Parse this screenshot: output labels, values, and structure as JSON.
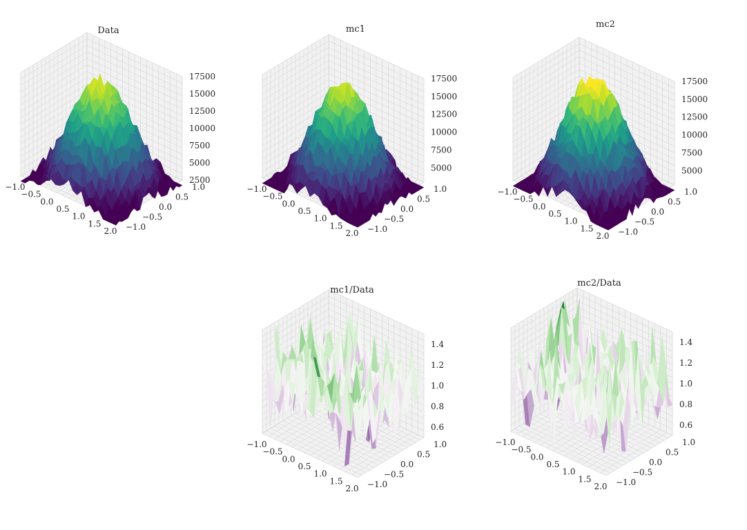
{
  "colors": {
    "background": "#ffffff",
    "pane": "#f2f2f2",
    "grid": "#cfcfcf",
    "text": "#222222"
  },
  "chart_data": [
    {
      "type": "surface",
      "title": "Data",
      "colormap": "viridis",
      "xlim": [
        -1.0,
        2.0
      ],
      "ylim": [
        -1.0,
        1.0
      ],
      "zlim": [
        2500,
        17500
      ],
      "x_ticks": [
        "−1.0",
        "−0.5",
        "0.0",
        "0.5",
        "1.0",
        "1.5",
        "2.0"
      ],
      "y_ticks": [
        "−1.0",
        "−0.5",
        "0.0",
        "0.5",
        "1.0"
      ],
      "z_ticks": [
        "2500",
        "5000",
        "7500",
        "10000",
        "12500",
        "15000",
        "17500"
      ],
      "peak": 16500,
      "grid": true
    },
    {
      "type": "surface",
      "title": "mc1",
      "colormap": "viridis",
      "xlim": [
        -1.0,
        2.0
      ],
      "ylim": [
        -1.0,
        1.0
      ],
      "zlim": [
        3000,
        17500
      ],
      "x_ticks": [
        "−1.0",
        "−0.5",
        "0.0",
        "0.5",
        "1.0",
        "1.5",
        "2.0"
      ],
      "y_ticks": [
        "−1.0",
        "−0.5",
        "0.0",
        "0.5",
        "1.0"
      ],
      "z_ticks": [
        "5000",
        "7500",
        "10000",
        "12500",
        "15000",
        "17500"
      ],
      "peak": 16000,
      "grid": true
    },
    {
      "type": "surface",
      "title": "mc2",
      "colormap": "viridis",
      "xlim": [
        -1.0,
        2.0
      ],
      "ylim": [
        -1.0,
        1.0
      ],
      "zlim": [
        3000,
        17500
      ],
      "x_ticks": [
        "−1.0",
        "−0.5",
        "0.0",
        "0.5",
        "1.0",
        "1.5",
        "2.0"
      ],
      "y_ticks": [
        "−1.0",
        "−0.5",
        "0.0",
        "0.5",
        "1.0"
      ],
      "z_ticks": [
        "5000",
        "7500",
        "10000",
        "12500",
        "15000",
        "17500"
      ],
      "peak": 17500,
      "grid": true
    },
    {
      "type": "surface",
      "title": "mc1/Data",
      "colormap": "PRGn",
      "xlim": [
        -1.0,
        2.0
      ],
      "ylim": [
        -1.0,
        1.0
      ],
      "zlim": [
        0.5,
        1.5
      ],
      "x_ticks": [
        "−1.0",
        "−0.5",
        "0.0",
        "0.5",
        "1.0",
        "1.5",
        "2.0"
      ],
      "y_ticks": [
        "−1.0",
        "−0.5",
        "0.0",
        "0.5",
        "1.0"
      ],
      "z_ticks": [
        "0.6",
        "0.8",
        "1.0",
        "1.2",
        "1.4"
      ],
      "peak": 1.45,
      "grid": true
    },
    {
      "type": "surface",
      "title": "mc2/Data",
      "colormap": "PRGn",
      "xlim": [
        -1.0,
        2.0
      ],
      "ylim": [
        -1.0,
        1.0
      ],
      "zlim": [
        0.5,
        1.5
      ],
      "x_ticks": [
        "−1.0",
        "−0.5",
        "0.0",
        "0.5",
        "1.0",
        "1.5",
        "2.0"
      ],
      "y_ticks": [
        "−1.0",
        "−0.5",
        "0.0",
        "0.5",
        "1.0"
      ],
      "z_ticks": [
        "0.6",
        "0.8",
        "1.0",
        "1.2",
        "1.4"
      ],
      "peak": 1.5,
      "grid": true
    }
  ]
}
